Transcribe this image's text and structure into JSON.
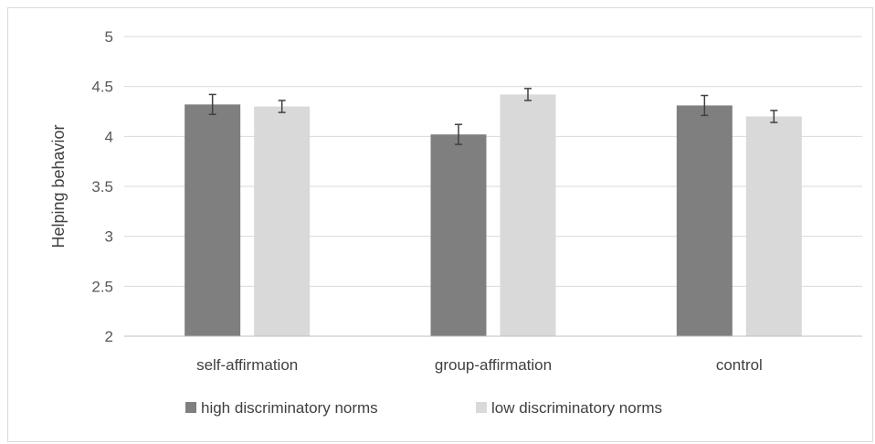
{
  "chart_data": {
    "type": "bar",
    "title": "",
    "xlabel": "",
    "ylabel": "Helping behavior",
    "ylim": [
      2,
      5
    ],
    "yticks": [
      "2",
      "2.5",
      "3",
      "3.5",
      "4",
      "4.5",
      "5"
    ],
    "grid": true,
    "legend_position": "bottom",
    "categories": [
      "self-affirmation",
      "group-affirmation",
      "control"
    ],
    "series": [
      {
        "name": "high discriminatory norms",
        "color": "#7f7f7f",
        "values": [
          4.32,
          4.02,
          4.31
        ],
        "errors": [
          0.1,
          0.1,
          0.1
        ]
      },
      {
        "name": "low discriminatory norms",
        "color": "#d9d9d9",
        "values": [
          4.3,
          4.42,
          4.2
        ],
        "errors": [
          0.06,
          0.06,
          0.06
        ]
      }
    ]
  }
}
